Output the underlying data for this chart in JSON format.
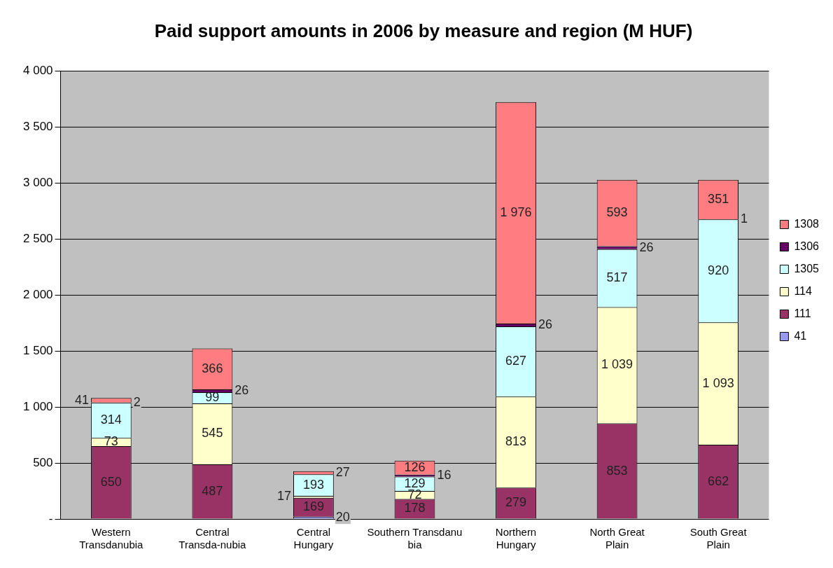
{
  "chart_data": {
    "type": "bar",
    "stacked": true,
    "title": "Paid support amounts in 2006 by measure and region (M HUF)",
    "categories": [
      "Western Transdanubia",
      "Central Transda-nubia",
      "Central Hungary",
      "Southern Transdanu bia",
      "Northern Hungary",
      "North Great Plain",
      "South Great Plain"
    ],
    "ylim": [
      0,
      4000
    ],
    "yticks": [
      {
        "value": 0,
        "label": "-"
      },
      {
        "value": 500,
        "label": "500"
      },
      {
        "value": 1000,
        "label": "1 000"
      },
      {
        "value": 1500,
        "label": "1 500"
      },
      {
        "value": 2000,
        "label": "2 000"
      },
      {
        "value": 2500,
        "label": "2 500"
      },
      {
        "value": 3000,
        "label": "3 000"
      },
      {
        "value": 3500,
        "label": "3 500"
      },
      {
        "value": 4000,
        "label": "4 000"
      }
    ],
    "grid": "y",
    "legend": "right",
    "series": [
      {
        "name": "41",
        "color": "#9999ff",
        "values": [
          null,
          null,
          20,
          null,
          null,
          null,
          null
        ],
        "value_labels": [
          null,
          null,
          "20",
          null,
          null,
          null,
          null
        ]
      },
      {
        "name": "111",
        "color": "#993366",
        "values": [
          650,
          487,
          169,
          178,
          279,
          853,
          662
        ],
        "value_labels": [
          "650",
          "487",
          "169",
          "178",
          "279",
          "853",
          "662"
        ]
      },
      {
        "name": "114",
        "color": "#ffffcc",
        "values": [
          73,
          545,
          17,
          72,
          813,
          1039,
          1093
        ],
        "value_labels": [
          "73",
          "545",
          "17",
          "72",
          "813",
          "1 039",
          "1 093"
        ]
      },
      {
        "name": "1305",
        "color": "#ccffff",
        "values": [
          314,
          99,
          193,
          129,
          627,
          517,
          920
        ],
        "value_labels": [
          "314",
          "99",
          "193",
          "129",
          "627",
          "517",
          "920"
        ]
      },
      {
        "name": "1306",
        "color": "#660066",
        "values": [
          2,
          26,
          null,
          16,
          26,
          26,
          1
        ],
        "value_labels": [
          "2",
          "26",
          null,
          "16",
          "26",
          "26",
          "1"
        ]
      },
      {
        "name": "1308",
        "color": "#ff7c80",
        "values": [
          41,
          366,
          27,
          126,
          1976,
          593,
          351
        ],
        "value_labels": [
          "41",
          "366",
          "27",
          "126",
          "1 976",
          "593",
          "351"
        ]
      }
    ]
  }
}
